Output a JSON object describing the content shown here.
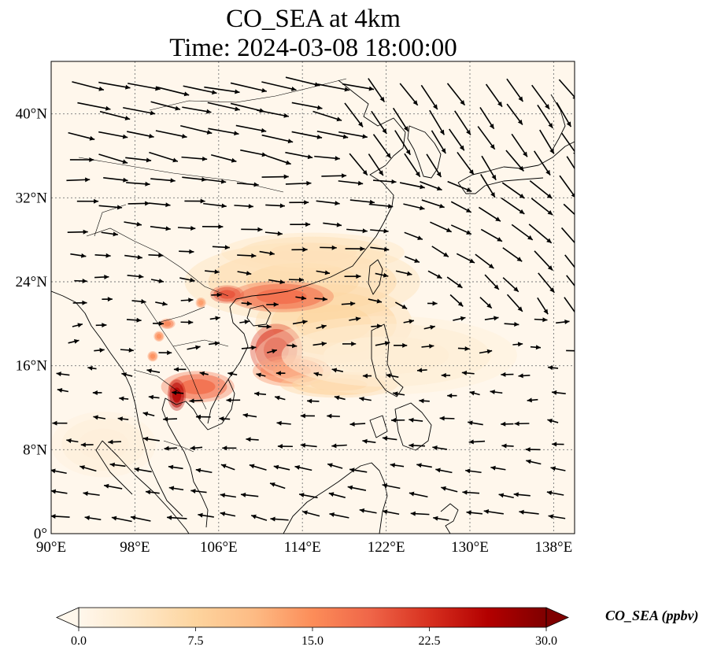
{
  "title": {
    "line1": "CO_SEA at 4km",
    "line2": "Time: 2024-03-08 18:00:00"
  },
  "chart_data": {
    "type": "map",
    "variable": "CO_SEA",
    "units": "ppbv",
    "colorbar_label": "CO_SEA (ppbv)",
    "colormap": "OrRd",
    "colormap_stops": [
      "#fff7ec",
      "#fee8c8",
      "#fdd49e",
      "#fdbb84",
      "#fc8d59",
      "#ef6548",
      "#d7301f",
      "#b30000",
      "#7f0000"
    ],
    "extend": "both",
    "value_range": [
      0.0,
      30.0
    ],
    "colorbar_ticks": [
      "0.0",
      "7.5",
      "15.0",
      "22.5",
      "30.0"
    ],
    "extent": {
      "lon": [
        90,
        140
      ],
      "lat": [
        0,
        45
      ]
    },
    "lon_ticks": [
      {
        "value": 90,
        "label": "90°E"
      },
      {
        "value": 98,
        "label": "98°E"
      },
      {
        "value": 106,
        "label": "106°E"
      },
      {
        "value": 114,
        "label": "114°E"
      },
      {
        "value": 122,
        "label": "122°E"
      },
      {
        "value": 130,
        "label": "130°E"
      },
      {
        "value": 138,
        "label": "138°E"
      }
    ],
    "lat_ticks": [
      {
        "value": 0,
        "label": "0°"
      },
      {
        "value": 8,
        "label": "8°N"
      },
      {
        "value": 16,
        "label": "16°N"
      },
      {
        "value": 24,
        "label": "24°N"
      },
      {
        "value": 32,
        "label": "32°N"
      },
      {
        "value": 40,
        "label": "40°N"
      }
    ],
    "gridlines": "dotted",
    "plumes": [
      {
        "lon": 114,
        "lat": 24,
        "rlon": 9,
        "rlat": 3.0,
        "value": 6
      },
      {
        "lon": 117,
        "lat": 20,
        "rlon": 6,
        "rlat": 3.0,
        "value": 7
      },
      {
        "lon": 112,
        "lat": 22.6,
        "rlon": 4,
        "rlat": 1.2,
        "value": 18
      },
      {
        "lon": 111.5,
        "lat": 17.5,
        "rlon": 2.0,
        "rlat": 2.0,
        "value": 22
      },
      {
        "lon": 113,
        "lat": 15.5,
        "rlon": 3.0,
        "rlat": 1.2,
        "value": 16
      },
      {
        "lon": 117.5,
        "lat": 14.2,
        "rlon": 4.5,
        "rlat": 1.0,
        "value": 8
      },
      {
        "lon": 104,
        "lat": 14.0,
        "rlon": 2.8,
        "rlat": 1.2,
        "value": 18
      },
      {
        "lon": 102.0,
        "lat": 13.2,
        "rlon": 0.7,
        "rlat": 1.2,
        "value": 26
      },
      {
        "lon": 106.8,
        "lat": 22.8,
        "rlon": 1.3,
        "rlat": 0.7,
        "value": 20
      },
      {
        "lon": 101.1,
        "lat": 20.0,
        "rlon": 0.6,
        "rlat": 0.4,
        "value": 16
      },
      {
        "lon": 100.3,
        "lat": 18.8,
        "rlon": 0.4,
        "rlat": 0.4,
        "value": 15
      },
      {
        "lon": 99.7,
        "lat": 16.9,
        "rlon": 0.4,
        "rlat": 0.4,
        "value": 15
      },
      {
        "lon": 104.3,
        "lat": 22.0,
        "rlon": 0.4,
        "rlat": 0.4,
        "value": 14
      },
      {
        "lon": 115,
        "lat": 26.8,
        "rlon": 7,
        "rlat": 1.5,
        "value": 5
      },
      {
        "lon": 122,
        "lat": 17,
        "rlon": 10,
        "rlat": 3,
        "value": 2.5
      },
      {
        "lon": 95,
        "lat": 8.5,
        "rlon": 4,
        "rlat": 2.5,
        "value": 2
      }
    ],
    "wind_field": {
      "type": "quiver",
      "color": "#000000"
    }
  }
}
